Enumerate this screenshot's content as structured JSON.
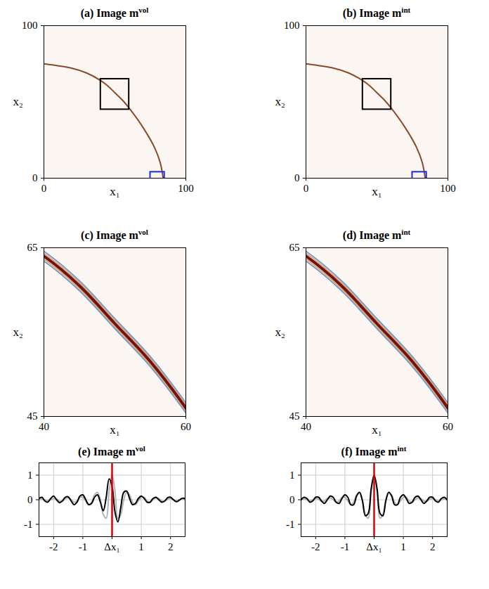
{
  "chart_data": [
    {
      "type": "image",
      "title": "(a) Image m",
      "title_sup": "vol",
      "xlabel": "x₁",
      "ylabel": "x₂",
      "xlim": [
        0,
        100
      ],
      "ylim": [
        0,
        100
      ],
      "xticks": [
        0,
        100
      ],
      "yticks": [
        0,
        100
      ],
      "reflector": {
        "x": [
          0,
          20,
          30,
          40,
          45,
          50,
          55,
          60,
          70,
          78,
          82,
          84
        ],
        "y": [
          75,
          72,
          69,
          64,
          60.5,
          56,
          51.5,
          46,
          33,
          20,
          10,
          0
        ],
        "color": "#8b4a2b"
      },
      "boxes": [
        {
          "x": [
            40,
            60
          ],
          "y": [
            45,
            65
          ],
          "color": "#000000"
        },
        {
          "x": [
            75,
            85
          ],
          "y": [
            -4,
            4
          ],
          "color": "#1a2ee6"
        }
      ]
    },
    {
      "type": "image",
      "title": "(b) Image m",
      "title_sup": "int",
      "xlabel": "x₁",
      "ylabel": "x₂",
      "xlim": [
        0,
        100
      ],
      "ylim": [
        0,
        100
      ],
      "xticks": [
        0,
        100
      ],
      "yticks": [
        0,
        100
      ],
      "reflector": {
        "x": [
          0,
          20,
          30,
          40,
          45,
          50,
          55,
          60,
          70,
          78,
          82,
          84
        ],
        "y": [
          75,
          72,
          69,
          64,
          60.5,
          56,
          51.5,
          46,
          33,
          20,
          10,
          0
        ],
        "color": "#8b4a2b"
      },
      "boxes": [
        {
          "x": [
            40,
            60
          ],
          "y": [
            45,
            65
          ],
          "color": "#000000"
        },
        {
          "x": [
            75,
            85
          ],
          "y": [
            -4,
            4
          ],
          "color": "#1a2ee6"
        }
      ]
    },
    {
      "type": "image",
      "title": "(c) Image m",
      "title_sup": "vol",
      "xlabel": "x₁",
      "ylabel": "x₂",
      "xlim": [
        40,
        60
      ],
      "ylim": [
        45,
        65
      ],
      "xticks": [
        40,
        60
      ],
      "yticks": [
        45,
        65
      ],
      "reflector": {
        "x": [
          0,
          20,
          30,
          40,
          45,
          50,
          55,
          60,
          70,
          78,
          82,
          84
        ],
        "y": [
          75,
          72,
          69,
          64,
          60.5,
          56,
          51.5,
          46,
          33,
          20,
          10,
          0
        ],
        "color": "#6e1410"
      },
      "boxes": []
    },
    {
      "type": "image",
      "title": "(d) Image m",
      "title_sup": "int",
      "xlabel": "x₁",
      "ylabel": "x₂",
      "xlim": [
        40,
        60
      ],
      "ylim": [
        45,
        65
      ],
      "xticks": [
        40,
        60
      ],
      "yticks": [
        45,
        65
      ],
      "reflector": {
        "x": [
          0,
          20,
          30,
          40,
          45,
          50,
          55,
          60,
          70,
          78,
          82,
          84
        ],
        "y": [
          75,
          72,
          69,
          64,
          60.5,
          56,
          51.5,
          46,
          33,
          20,
          10,
          0
        ],
        "color": "#6e1410"
      },
      "boxes": []
    },
    {
      "type": "line",
      "title": "(e) Image m",
      "title_sup": "vol",
      "grid": true,
      "xlim": [
        -2.5,
        2.5
      ],
      "ylim": [
        -1.5,
        1.5
      ],
      "xticks": [
        -2,
        -1,
        {
          "value": 0,
          "label": "Δx₁"
        },
        1,
        2
      ],
      "yticks": [
        -1,
        0,
        1
      ],
      "reference_line": {
        "x": 0,
        "color": "#e00000"
      },
      "x": [
        -2.5,
        -2.4,
        -2.3,
        -2.2,
        -2.1,
        -2.0,
        -1.9,
        -1.8,
        -1.7,
        -1.6,
        -1.5,
        -1.4,
        -1.3,
        -1.2,
        -1.1,
        -1.0,
        -0.9,
        -0.8,
        -0.7,
        -0.6,
        -0.5,
        -0.4,
        -0.3,
        -0.2,
        -0.1,
        0,
        0.1,
        0.2,
        0.3,
        0.4,
        0.5,
        0.6,
        0.7,
        0.8,
        0.9,
        1.0,
        1.1,
        1.2,
        1.3,
        1.4,
        1.5,
        1.6,
        1.7,
        1.8,
        1.9,
        2.0,
        2.1,
        2.2,
        2.3,
        2.4,
        2.5
      ],
      "series": [
        {
          "color": "#b3b3b3",
          "values": [
            0.0,
            0.03,
            0.0,
            -0.04,
            0.0,
            0.05,
            0.02,
            -0.06,
            -0.05,
            0.05,
            0.08,
            0.0,
            -0.1,
            -0.05,
            0.1,
            0.1,
            -0.05,
            -0.2,
            -0.1,
            0.2,
            0.3,
            0.0,
            -0.6,
            -0.75,
            0.35,
            1.0,
            0.35,
            -0.75,
            -0.6,
            0.0,
            0.3,
            0.2,
            -0.1,
            -0.2,
            -0.05,
            0.1,
            0.1,
            -0.05,
            -0.1,
            0.0,
            0.08,
            0.05,
            -0.05,
            -0.06,
            0.02,
            0.05,
            0.0,
            -0.04,
            0.0,
            0.03,
            0.0
          ]
        },
        {
          "color": "#000000",
          "values": [
            0.05,
            0.1,
            -0.05,
            -0.1,
            0.05,
            0.15,
            0.0,
            -0.12,
            -0.05,
            0.1,
            0.12,
            -0.05,
            -0.2,
            -0.1,
            0.15,
            0.2,
            0.0,
            -0.2,
            -0.15,
            0.1,
            0.2,
            -0.1,
            -0.45,
            0.1,
            0.85,
            0.55,
            -0.5,
            -0.9,
            -0.3,
            0.3,
            0.35,
            0.05,
            -0.2,
            -0.15,
            0.05,
            0.15,
            0.05,
            -0.1,
            -0.1,
            0.05,
            0.1,
            0.0,
            -0.1,
            -0.05,
            0.08,
            0.1,
            0.0,
            -0.08,
            -0.02,
            0.06,
            0.05
          ]
        }
      ]
    },
    {
      "type": "line",
      "title": "(f) Image m",
      "title_sup": "int",
      "grid": true,
      "xlim": [
        -2.5,
        2.5
      ],
      "ylim": [
        -1.5,
        1.5
      ],
      "xticks": [
        -2,
        -1,
        {
          "value": 0,
          "label": "Δx₁"
        },
        1,
        2
      ],
      "yticks": [
        -1,
        0,
        1
      ],
      "reference_line": {
        "x": 0,
        "color": "#e00000"
      },
      "x": [
        -2.5,
        -2.4,
        -2.3,
        -2.2,
        -2.1,
        -2.0,
        -1.9,
        -1.8,
        -1.7,
        -1.6,
        -1.5,
        -1.4,
        -1.3,
        -1.2,
        -1.1,
        -1.0,
        -0.9,
        -0.8,
        -0.7,
        -0.6,
        -0.5,
        -0.4,
        -0.3,
        -0.2,
        -0.1,
        0,
        0.1,
        0.2,
        0.3,
        0.4,
        0.5,
        0.6,
        0.7,
        0.8,
        0.9,
        1.0,
        1.1,
        1.2,
        1.3,
        1.4,
        1.5,
        1.6,
        1.7,
        1.8,
        1.9,
        2.0,
        2.1,
        2.2,
        2.3,
        2.4,
        2.5
      ],
      "series": [
        {
          "color": "#b3b3b3",
          "values": [
            0.0,
            0.03,
            0.0,
            -0.04,
            0.0,
            0.05,
            0.02,
            -0.06,
            -0.05,
            0.05,
            0.08,
            0.0,
            -0.1,
            -0.05,
            0.1,
            0.1,
            -0.05,
            -0.2,
            -0.1,
            0.2,
            0.3,
            0.0,
            -0.6,
            -0.75,
            0.35,
            1.0,
            0.35,
            -0.75,
            -0.6,
            0.0,
            0.3,
            0.2,
            -0.1,
            -0.2,
            -0.05,
            0.1,
            0.1,
            -0.05,
            -0.1,
            0.0,
            0.08,
            0.05,
            -0.05,
            -0.06,
            0.02,
            0.05,
            0.0,
            -0.04,
            0.0,
            0.03,
            0.0
          ]
        },
        {
          "color": "#000000",
          "values": [
            0.0,
            0.1,
            0.05,
            -0.1,
            -0.05,
            0.1,
            0.1,
            -0.05,
            -0.15,
            0.0,
            0.15,
            0.1,
            -0.1,
            -0.15,
            0.05,
            0.2,
            0.1,
            -0.2,
            -0.2,
            0.15,
            0.3,
            -0.05,
            -0.65,
            -0.55,
            0.45,
            1.0,
            0.45,
            -0.55,
            -0.65,
            -0.05,
            0.3,
            0.15,
            -0.2,
            -0.2,
            0.1,
            0.2,
            0.05,
            -0.15,
            -0.1,
            0.1,
            0.15,
            0.0,
            -0.15,
            -0.05,
            0.1,
            0.1,
            -0.05,
            -0.1,
            0.05,
            0.1,
            0.0
          ]
        }
      ]
    }
  ]
}
